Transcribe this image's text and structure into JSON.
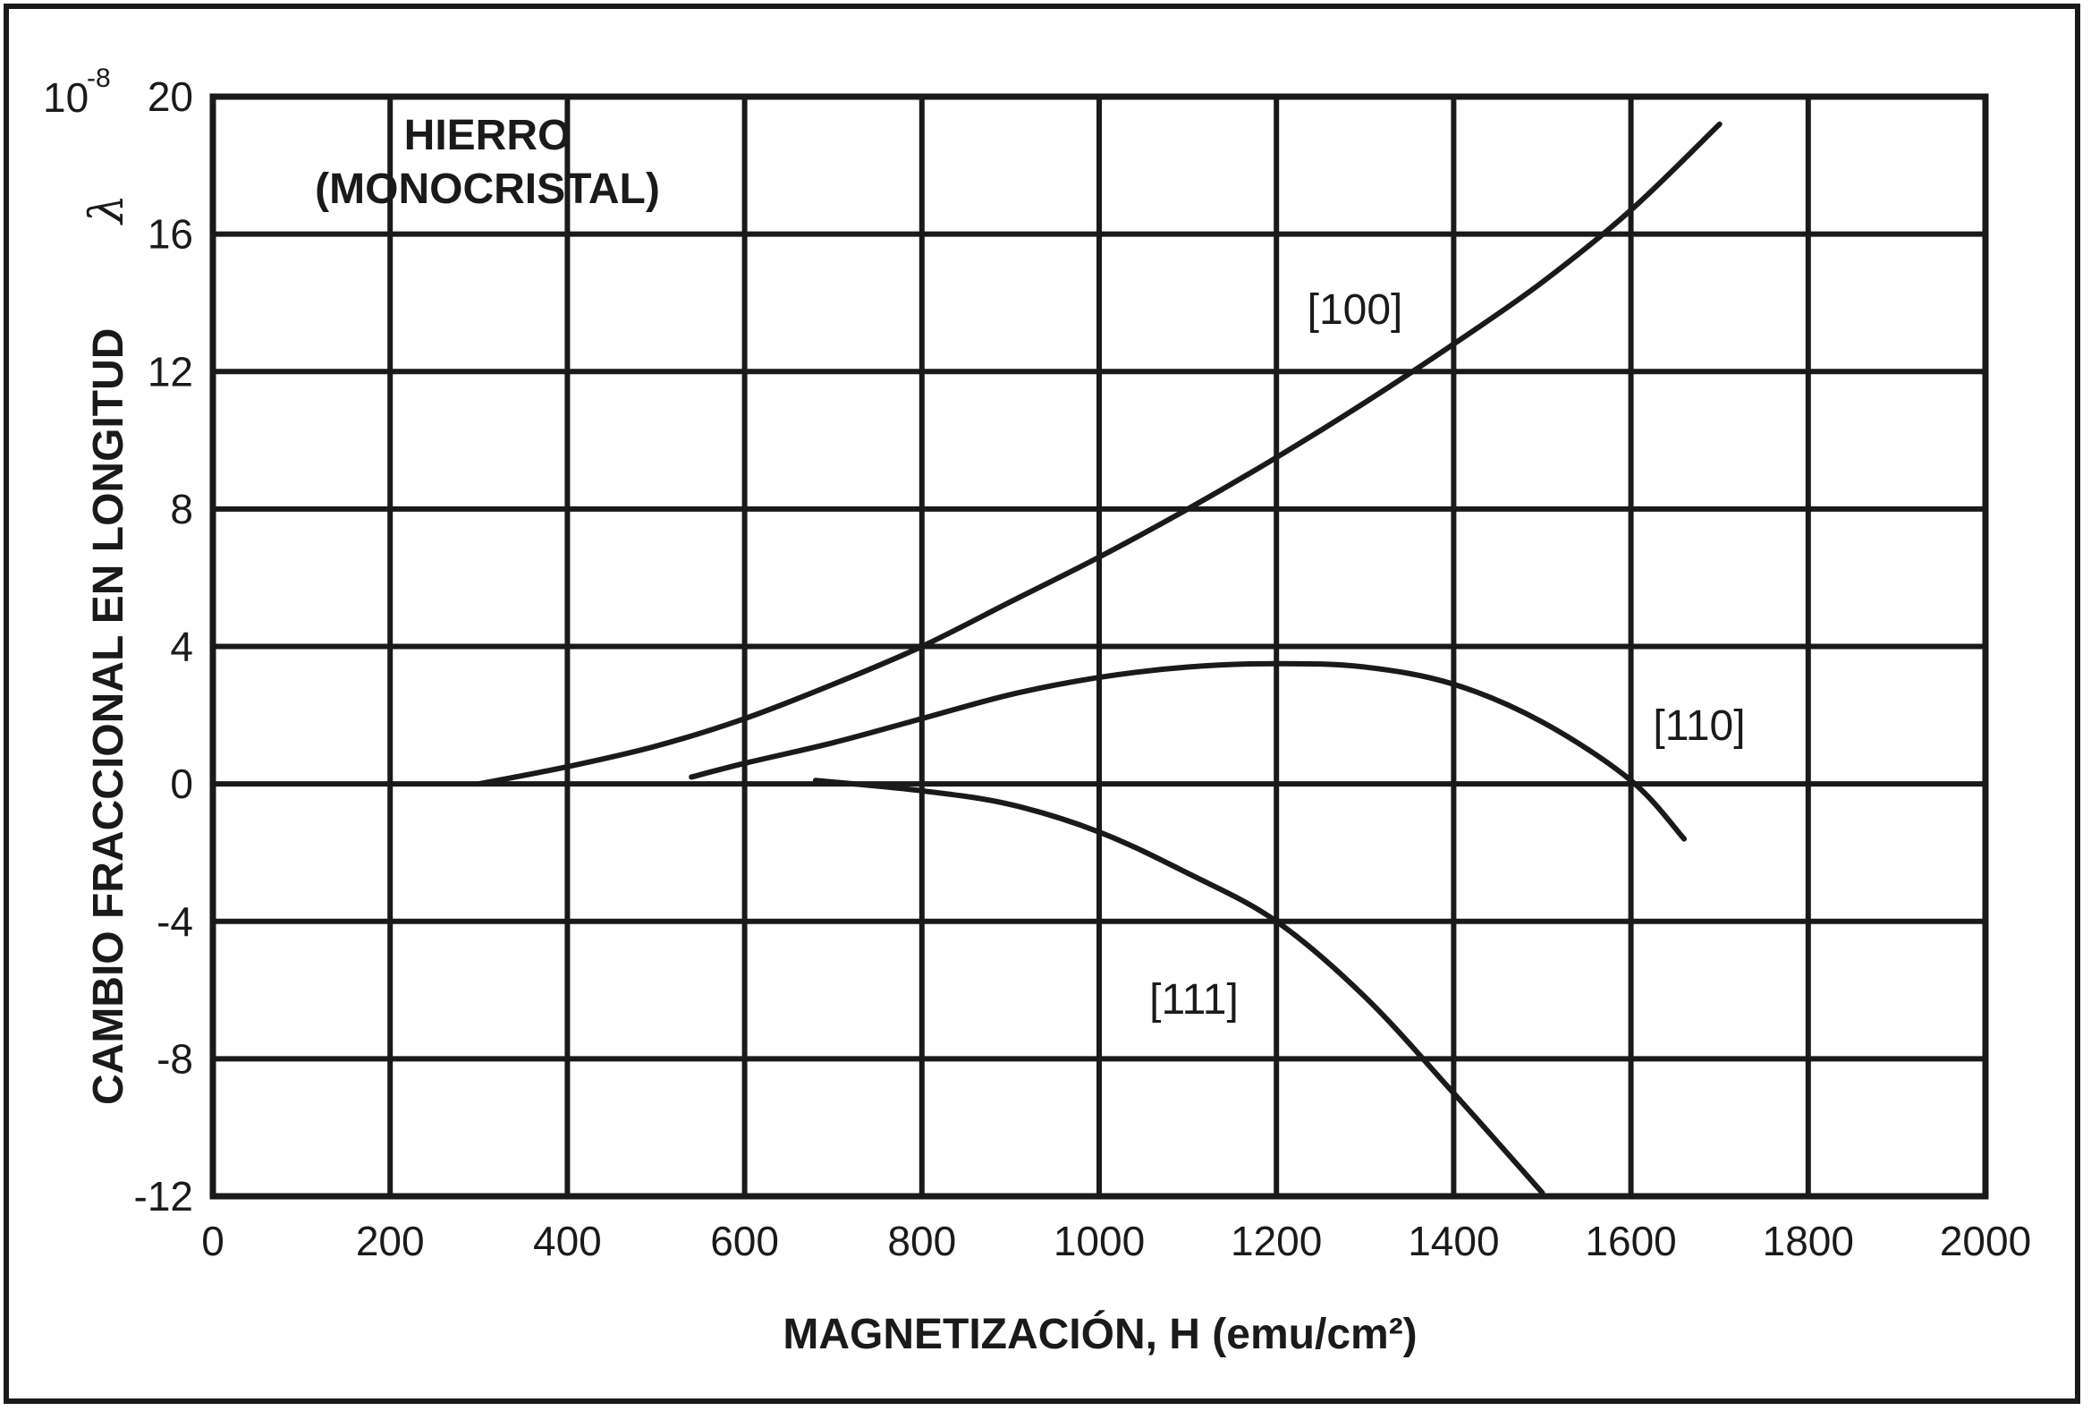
{
  "chart_data": {
    "type": "line",
    "title": "HIERRO",
    "subtitle": "(MONOCRISTAL)",
    "xlabel": "MAGNETIZACIÓN, H (emu/cm²)",
    "ylabel": "CAMBIO FRACCIONAL EN LONGITUD",
    "ylabel_symbol": "λ",
    "y_multiplier_base": "10",
    "y_multiplier_exponent": "-8",
    "xlim": [
      0,
      2000
    ],
    "ylim": [
      -12,
      20
    ],
    "x_ticks": [
      0,
      200,
      400,
      600,
      800,
      1000,
      1200,
      1400,
      1600,
      1800,
      2000
    ],
    "y_ticks": [
      -12,
      -8,
      -4,
      0,
      4,
      8,
      12,
      16,
      20
    ],
    "grid": true,
    "line_color": "#1a1a1a",
    "series": [
      {
        "name": "[100]",
        "x": [
          300,
          400,
          500,
          600,
          700,
          800,
          900,
          1000,
          1100,
          1200,
          1300,
          1400,
          1500,
          1600,
          1700
        ],
        "y": [
          0.0,
          0.5,
          1.1,
          1.9,
          2.9,
          4.0,
          5.3,
          6.6,
          8.0,
          9.5,
          11.1,
          12.8,
          14.6,
          16.7,
          19.2
        ]
      },
      {
        "name": "[110]",
        "x": [
          540,
          600,
          700,
          800,
          900,
          1000,
          1100,
          1200,
          1300,
          1400,
          1500,
          1600,
          1660
        ],
        "y": [
          0.2,
          0.6,
          1.2,
          1.9,
          2.6,
          3.1,
          3.4,
          3.5,
          3.4,
          2.9,
          1.8,
          0.1,
          -1.6
        ]
      },
      {
        "name": "[111]",
        "x": [
          680,
          800,
          900,
          1000,
          1100,
          1200,
          1300,
          1400,
          1500
        ],
        "y": [
          0.1,
          -0.2,
          -0.6,
          -1.4,
          -2.6,
          -4.0,
          -6.2,
          -9.0,
          -11.9
        ]
      }
    ]
  }
}
